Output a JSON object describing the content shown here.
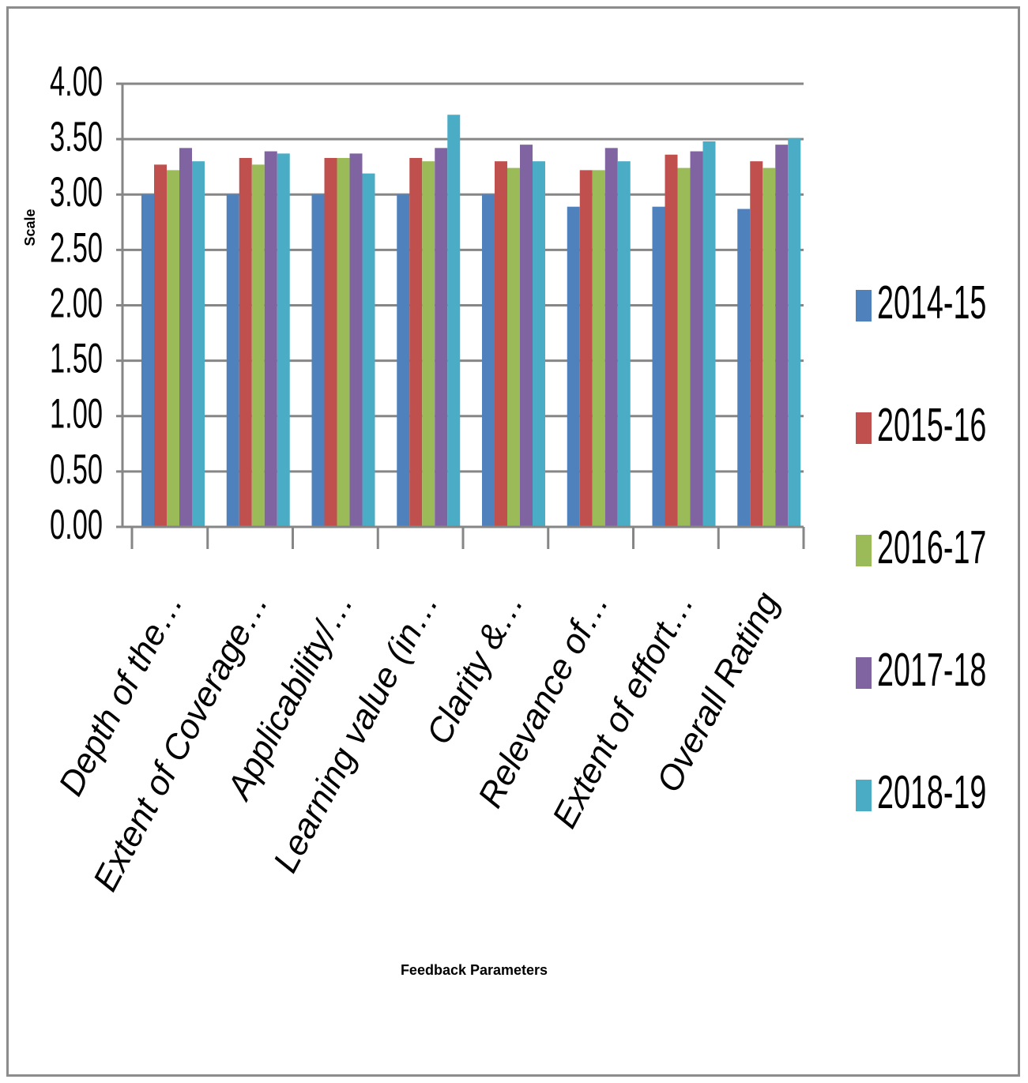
{
  "chart_data": {
    "type": "bar",
    "title": "",
    "xlabel": "Feedback Parameters",
    "ylabel": "Scale",
    "ylim": [
      0,
      4
    ],
    "yticks": [
      "0.00",
      "0.50",
      "1.00",
      "1.50",
      "2.00",
      "2.50",
      "3.00",
      "3.50",
      "4.00"
    ],
    "grid": true,
    "legend_position": "right",
    "categories": [
      "Depth of the…",
      "Extent of Coverage…",
      "Applicability/…",
      "Learning value (in…",
      "Clarity &…",
      "Relevance of…",
      "Extent of effort…",
      "Overall Rating"
    ],
    "series": [
      {
        "name": "2014-15",
        "color": "#4f81bd",
        "values": [
          3.0,
          3.0,
          3.0,
          3.0,
          3.0,
          2.89,
          2.89,
          2.87
        ]
      },
      {
        "name": "2015-16",
        "color": "#c0504d",
        "values": [
          3.27,
          3.33,
          3.33,
          3.33,
          3.3,
          3.22,
          3.36,
          3.3
        ]
      },
      {
        "name": "2016-17",
        "color": "#9bbb59",
        "values": [
          3.22,
          3.27,
          3.33,
          3.3,
          3.24,
          3.22,
          3.24,
          3.24
        ]
      },
      {
        "name": "2017-18",
        "color": "#8064a2",
        "values": [
          3.42,
          3.39,
          3.37,
          3.42,
          3.45,
          3.42,
          3.39,
          3.45
        ]
      },
      {
        "name": "2018-19",
        "color": "#4bacc6",
        "values": [
          3.3,
          3.37,
          3.19,
          3.72,
          3.3,
          3.3,
          3.48,
          3.51
        ]
      }
    ]
  }
}
